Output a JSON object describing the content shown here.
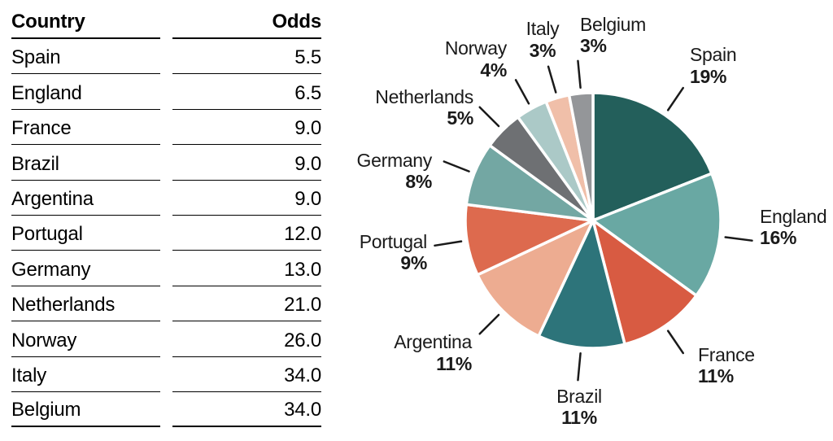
{
  "table": {
    "columns": [
      "Country",
      "Odds"
    ],
    "rows": [
      [
        "Spain",
        "5.5"
      ],
      [
        "England",
        "6.5"
      ],
      [
        "France",
        "9.0"
      ],
      [
        "Brazil",
        "9.0"
      ],
      [
        "Argentina",
        "9.0"
      ],
      [
        "Portugal",
        "12.0"
      ],
      [
        "Germany",
        "13.0"
      ],
      [
        "Netherlands",
        "21.0"
      ],
      [
        "Norway",
        "26.0"
      ],
      [
        "Italy",
        "34.0"
      ],
      [
        "Belgium",
        "34.0"
      ]
    ]
  },
  "chart_data": {
    "type": "pie",
    "title": "",
    "categories": [
      "Spain",
      "England",
      "France",
      "Brazil",
      "Argentina",
      "Portugal",
      "Germany",
      "Netherlands",
      "Norway",
      "Italy",
      "Belgium"
    ],
    "values": [
      19,
      16,
      11,
      11,
      11,
      9,
      8,
      5,
      4,
      3,
      3
    ],
    "unit": "%",
    "labels": [
      "19%",
      "16%",
      "11%",
      "11%",
      "11%",
      "9%",
      "8%",
      "5%",
      "4%",
      "3%",
      "3%"
    ],
    "colors": [
      "#235F5B",
      "#69A8A3",
      "#D85B42",
      "#2D747A",
      "#EDAC91",
      "#DD6A4E",
      "#73A7A3",
      "#6E7073",
      "#ABC9C7",
      "#F0BFA9",
      "#949699"
    ],
    "direction": "clockwise",
    "start_angle_deg": 0,
    "separator_color": "#ffffff",
    "label_color": "#1a1a1a",
    "leader_line_color": "#1a1a1a"
  }
}
